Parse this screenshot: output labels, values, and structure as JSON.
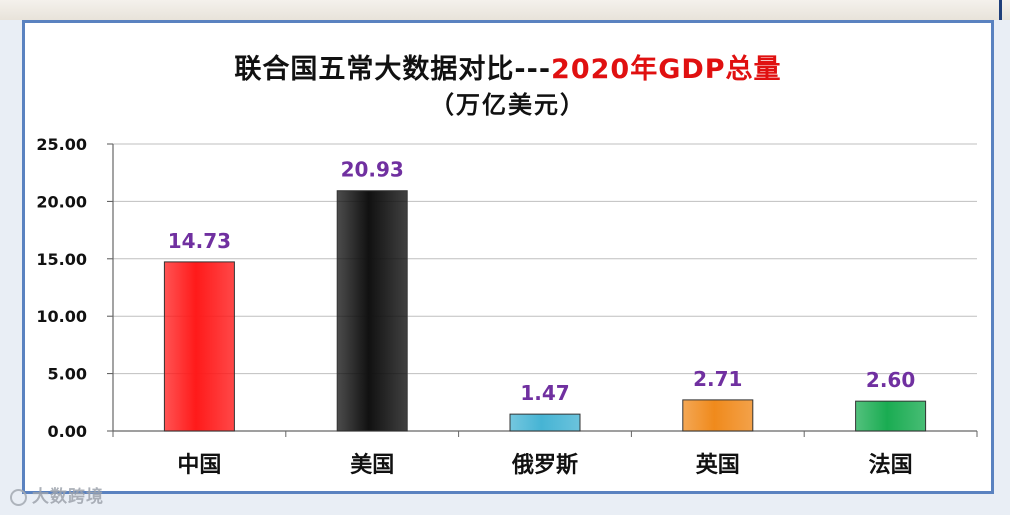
{
  "title_main": "联合国五常大数据对比---",
  "title_highlight": "2020年GDP总量",
  "subtitle": "（万亿美元）",
  "watermark": "大数跨境",
  "colors": {
    "frame": "#5a82c0",
    "title_highlight": "#e01010",
    "data_label": "#7030a0"
  },
  "chart_data": {
    "type": "bar",
    "categories": [
      "中国",
      "美国",
      "俄罗斯",
      "英国",
      "法国"
    ],
    "values": [
      14.73,
      20.93,
      1.47,
      2.71,
      2.6
    ],
    "value_labels": [
      "14.73",
      "20.93",
      "1.47",
      "2.71",
      "2.60"
    ],
    "bar_colors": [
      "#ff1a1a",
      "#111111",
      "#46b4d4",
      "#f08a1c",
      "#1aac52"
    ],
    "ylim": [
      0,
      25
    ],
    "yticks": [
      "0.00",
      "5.00",
      "10.00",
      "15.00",
      "20.00",
      "25.00"
    ],
    "ytick_values": [
      0,
      5,
      10,
      15,
      20,
      25
    ],
    "grid": true,
    "legend": "none"
  }
}
